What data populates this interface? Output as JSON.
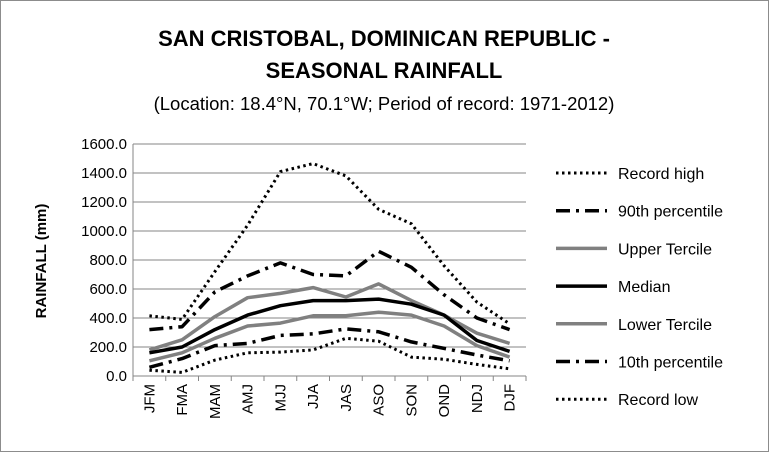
{
  "chart_data": {
    "type": "line",
    "title_line1": "SAN CRISTOBAL, DOMINICAN REPUBLIC -",
    "title_line2": "SEASONAL RAINFALL",
    "subtitle": "(Location: 18.4°N, 70.1°W; Period of record: 1971-2012)",
    "ylabel": "RAINFALL (mm)",
    "xlabel": "",
    "ylim": [
      0,
      1600
    ],
    "y_ticks": [
      "0.0",
      "200.0",
      "400.0",
      "600.0",
      "800.0",
      "1000.0",
      "1200.0",
      "1400.0",
      "1600.0"
    ],
    "categories": [
      "JFM",
      "FMA",
      "MAM",
      "AMJ",
      "MJJ",
      "JJA",
      "JAS",
      "ASO",
      "SON",
      "OND",
      "NDJ",
      "DJF"
    ],
    "legend_position": "right",
    "series": [
      {
        "name": "Record high",
        "style": "dotted",
        "color": "#000000",
        "values": [
          415,
          390,
          720,
          1040,
          1410,
          1465,
          1380,
          1150,
          1050,
          760,
          510,
          360
        ]
      },
      {
        "name": "90th percentile",
        "style": "dashdot",
        "color": "#000000",
        "values": [
          320,
          340,
          580,
          690,
          780,
          700,
          690,
          860,
          750,
          560,
          400,
          320
        ]
      },
      {
        "name": "Upper Tercile",
        "style": "solid",
        "color": "#808080",
        "values": [
          180,
          250,
          410,
          540,
          570,
          610,
          545,
          635,
          520,
          420,
          295,
          225
        ]
      },
      {
        "name": "Median",
        "style": "solid",
        "color": "#000000",
        "values": [
          160,
          200,
          320,
          420,
          485,
          520,
          520,
          530,
          495,
          420,
          245,
          170
        ]
      },
      {
        "name": "Lower Tercile",
        "style": "solid",
        "color": "#808080",
        "values": [
          105,
          160,
          260,
          345,
          365,
          415,
          415,
          440,
          420,
          345,
          210,
          130
        ]
      },
      {
        "name": "10th percentile",
        "style": "dashdot",
        "color": "#000000",
        "values": [
          60,
          120,
          210,
          225,
          280,
          290,
          325,
          305,
          235,
          190,
          145,
          105
        ]
      },
      {
        "name": "Record low",
        "style": "dotted",
        "color": "#000000",
        "values": [
          40,
          25,
          110,
          160,
          165,
          180,
          260,
          240,
          130,
          115,
          80,
          50
        ]
      }
    ]
  }
}
